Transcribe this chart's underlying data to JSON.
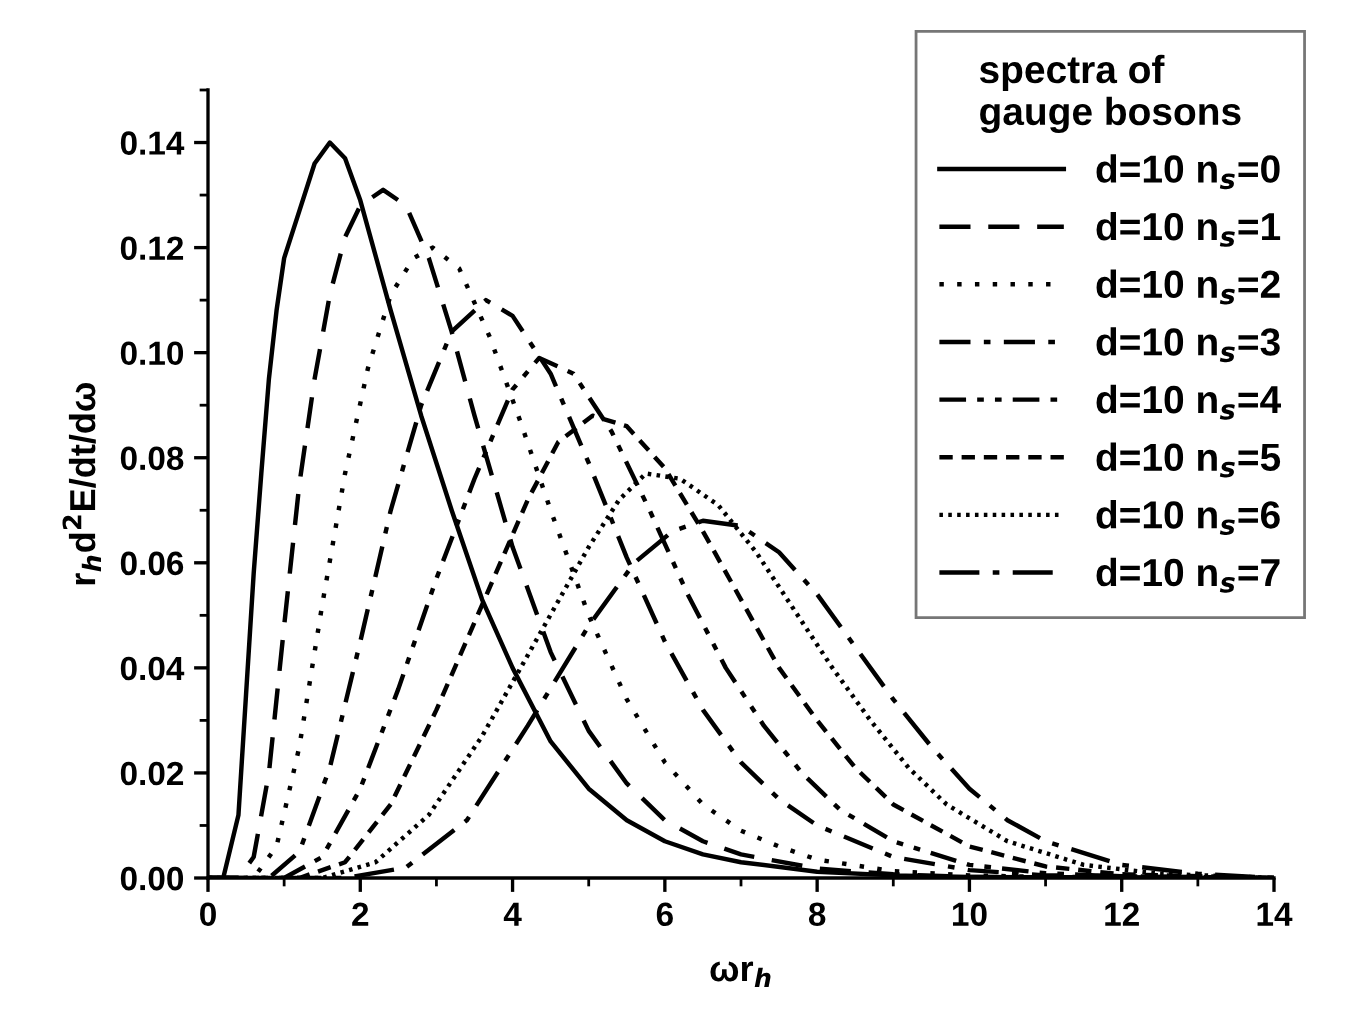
{
  "chart_data": {
    "type": "line",
    "xlabel": "ωr$_{h}$",
    "ylabel": "r$_{h}$d$^{2}$E/dt/dω",
    "legend_title": "spectra of\ngauge bosons",
    "legend": "top right",
    "grid": false,
    "marker": "none",
    "xlim": [
      0,
      14
    ],
    "xticks": [
      0,
      2,
      4,
      6,
      8,
      10,
      12,
      14
    ],
    "ylim": [
      0,
      0.15
    ],
    "yticks": [
      {
        "value": 0,
        "label": "0.00"
      },
      {
        "value": 0.02,
        "label": "0.02"
      },
      {
        "value": 0.04,
        "label": "0.04"
      },
      {
        "value": 0.06,
        "label": "0.06"
      },
      {
        "value": 0.08,
        "label": "0.08"
      },
      {
        "value": 0.1,
        "label": "0.10"
      },
      {
        "value": 0.12,
        "label": "0.12"
      },
      {
        "value": 0.14,
        "label": "0.14"
      }
    ],
    "series": [
      {
        "name": "d=10 n$_{s}$=0",
        "color": "#000000",
        "line_style": "solid",
        "x": [
          0,
          0.2,
          0.4,
          0.5,
          0.6,
          0.7,
          0.8,
          0.9,
          1.0,
          1.2,
          1.4,
          1.6,
          1.8,
          2.0,
          2.4,
          2.8,
          3.2,
          3.6,
          4.0,
          4.5,
          5,
          5.5,
          6,
          6.5,
          7,
          8,
          9,
          10,
          14
        ],
        "values": [
          0,
          0,
          0.012,
          0.035,
          0.058,
          0.077,
          0.095,
          0.108,
          0.118,
          0.127,
          0.136,
          0.14,
          0.137,
          0.129,
          0.108,
          0.088,
          0.07,
          0.053,
          0.04,
          0.026,
          0.017,
          0.011,
          0.007,
          0.0045,
          0.003,
          0.0012,
          0.0005,
          0.0002,
          0
        ]
      },
      {
        "name": "d=10 n$_{s}$=1",
        "color": "#000000",
        "line_style": "dashed",
        "x": [
          0,
          0.4,
          0.6,
          0.8,
          1.0,
          1.2,
          1.4,
          1.6,
          1.8,
          2.0,
          2.3,
          2.6,
          2.9,
          3.2,
          3.5,
          4,
          4.5,
          5,
          5.5,
          6,
          6.5,
          7,
          8,
          9,
          10,
          14
        ],
        "values": [
          0,
          0,
          0.004,
          0.02,
          0.048,
          0.075,
          0.095,
          0.111,
          0.122,
          0.128,
          0.131,
          0.128,
          0.118,
          0.104,
          0.088,
          0.063,
          0.043,
          0.028,
          0.018,
          0.011,
          0.007,
          0.0045,
          0.0018,
          0.0007,
          0.0002,
          0
        ]
      },
      {
        "name": "d=10 n$_{s}$=2",
        "color": "#000000",
        "line_style": "dotted",
        "x": [
          0,
          0.6,
          0.9,
          1.2,
          1.5,
          1.8,
          2.1,
          2.4,
          2.7,
          2.95,
          3.3,
          3.7,
          4.1,
          4.5,
          5,
          5.5,
          6,
          6.5,
          7,
          7.5,
          8,
          9,
          10,
          11,
          14
        ],
        "values": [
          0,
          0,
          0.006,
          0.025,
          0.052,
          0.077,
          0.097,
          0.111,
          0.118,
          0.12,
          0.116,
          0.103,
          0.087,
          0.07,
          0.05,
          0.034,
          0.022,
          0.014,
          0.009,
          0.006,
          0.0035,
          0.0013,
          0.0005,
          0.0002,
          0
        ]
      },
      {
        "name": "d=10 n$_{s}$=3",
        "color": "#000000",
        "line_style": "dashdot",
        "x": [
          0,
          0.8,
          1.2,
          1.6,
          2.0,
          2.4,
          2.8,
          3.2,
          3.65,
          4.0,
          4.5,
          5,
          5.5,
          6,
          6.5,
          7,
          7.5,
          8,
          9,
          10,
          11,
          14
        ],
        "values": [
          0,
          0,
          0.005,
          0.021,
          0.045,
          0.07,
          0.09,
          0.104,
          0.11,
          0.107,
          0.096,
          0.079,
          0.061,
          0.045,
          0.032,
          0.022,
          0.015,
          0.01,
          0.004,
          0.0015,
          0.0005,
          0
        ]
      },
      {
        "name": "d=10 n$_{s}$=4",
        "color": "#000000",
        "line_style": "dashdotdot",
        "x": [
          0,
          1.0,
          1.5,
          2.0,
          2.5,
          3.0,
          3.5,
          4.0,
          4.35,
          4.8,
          5.3,
          5.8,
          6.3,
          6.8,
          7.3,
          7.8,
          8.3,
          9,
          10,
          11,
          12,
          14
        ],
        "values": [
          0,
          0,
          0.004,
          0.017,
          0.036,
          0.057,
          0.076,
          0.093,
          0.099,
          0.096,
          0.085,
          0.07,
          0.054,
          0.04,
          0.029,
          0.02,
          0.013,
          0.007,
          0.0025,
          0.0009,
          0.0003,
          0
        ]
      },
      {
        "name": "d=10 n$_{s}$=5",
        "color": "#000000",
        "line_style": "shortdash",
        "x": [
          0,
          1.2,
          1.8,
          2.4,
          3.0,
          3.6,
          4.2,
          4.6,
          5.05,
          5.5,
          6,
          6.5,
          7,
          7.5,
          8,
          8.5,
          9,
          10,
          11,
          12,
          14
        ],
        "values": [
          0,
          0,
          0.003,
          0.014,
          0.032,
          0.052,
          0.072,
          0.083,
          0.088,
          0.086,
          0.078,
          0.066,
          0.053,
          0.04,
          0.03,
          0.021,
          0.014,
          0.006,
          0.0022,
          0.0007,
          0
        ]
      },
      {
        "name": "d=10 n$_{s}$=6",
        "color": "#000000",
        "line_style": "densedot",
        "x": [
          0,
          1.5,
          2.2,
          2.9,
          3.6,
          4.3,
          5.0,
          5.4,
          5.75,
          6.2,
          6.7,
          7.2,
          7.7,
          8.2,
          8.7,
          9.2,
          9.7,
          10.5,
          11.5,
          12.5,
          14
        ],
        "values": [
          0,
          0,
          0.003,
          0.012,
          0.027,
          0.045,
          0.063,
          0.072,
          0.077,
          0.076,
          0.071,
          0.062,
          0.051,
          0.04,
          0.03,
          0.021,
          0.014,
          0.007,
          0.0025,
          0.0008,
          0
        ]
      },
      {
        "name": "d=10 n$_{s}$=7",
        "color": "#000000",
        "line_style": "longdashdot",
        "x": [
          0,
          1.8,
          2.6,
          3.4,
          4.2,
          5.0,
          5.6,
          6.1,
          6.5,
          7.0,
          7.5,
          8.0,
          8.5,
          9.0,
          9.5,
          10,
          10.5,
          11,
          12,
          13,
          14
        ],
        "values": [
          0,
          0,
          0.002,
          0.011,
          0.029,
          0.048,
          0.06,
          0.066,
          0.068,
          0.067,
          0.062,
          0.054,
          0.044,
          0.034,
          0.025,
          0.017,
          0.011,
          0.007,
          0.0025,
          0.0008,
          0
        ]
      }
    ]
  }
}
